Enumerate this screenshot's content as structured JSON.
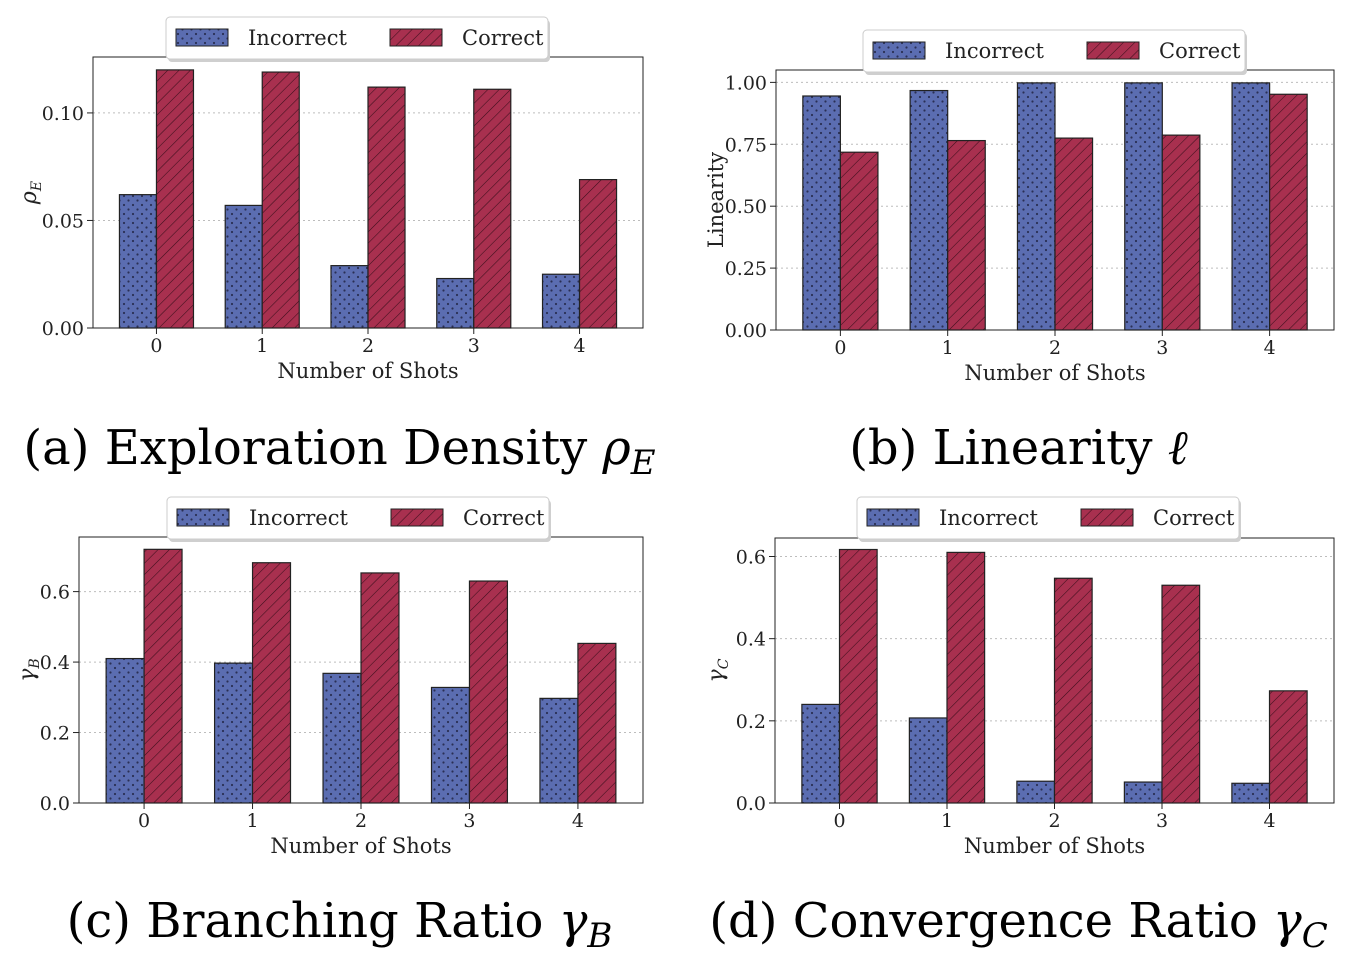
{
  "colors": {
    "incorrect": "#5b6db1",
    "correct": "#a8304f",
    "edge": "#222222"
  },
  "legend": {
    "incorrect": "Incorrect",
    "correct": "Correct"
  },
  "chart_data": [
    {
      "type": "bar",
      "id": "a",
      "caption_prefix": "(a) Exploration Density",
      "caption_symbol": "ρ",
      "caption_sub": "E",
      "ylabel_symbol": "ρ",
      "ylabel_sub": "E",
      "xlabel": "Number of Shots",
      "categories": [
        "0",
        "1",
        "2",
        "3",
        "4"
      ],
      "series": [
        {
          "name": "Incorrect",
          "values": [
            0.062,
            0.057,
            0.029,
            0.023,
            0.025
          ]
        },
        {
          "name": "Correct",
          "values": [
            0.12,
            0.119,
            0.112,
            0.111,
            0.069
          ]
        }
      ],
      "ylim": [
        0,
        0.126
      ],
      "yticks": [
        0.0,
        0.05,
        0.1
      ],
      "ytick_labels": [
        "0.00",
        "0.05",
        "0.10"
      ],
      "legend_position": "top-center",
      "grid": "y-dotted"
    },
    {
      "type": "bar",
      "id": "b",
      "caption_prefix": "(b) Linearity",
      "caption_symbol": "ℓ",
      "caption_sub": "",
      "ylabel_text": "Linearity",
      "xlabel": "Number of Shots",
      "categories": [
        "0",
        "1",
        "2",
        "3",
        "4"
      ],
      "series": [
        {
          "name": "Incorrect",
          "values": [
            0.945,
            0.967,
            0.998,
            0.998,
            0.998
          ]
        },
        {
          "name": "Correct",
          "values": [
            0.718,
            0.765,
            0.775,
            0.787,
            0.952
          ]
        }
      ],
      "ylim": [
        0,
        1.05
      ],
      "yticks": [
        0.0,
        0.25,
        0.5,
        0.75,
        1.0
      ],
      "ytick_labels": [
        "0.00",
        "0.25",
        "0.50",
        "0.75",
        "1.00"
      ],
      "legend_position": "top-center",
      "grid": "y-dotted"
    },
    {
      "type": "bar",
      "id": "c",
      "caption_prefix": "(c) Branching Ratio",
      "caption_symbol": "γ",
      "caption_sub": "B",
      "ylabel_symbol": "γ",
      "ylabel_sub": "B",
      "xlabel": "Number of Shots",
      "categories": [
        "0",
        "1",
        "2",
        "3",
        "4"
      ],
      "series": [
        {
          "name": "Incorrect",
          "values": [
            0.41,
            0.397,
            0.368,
            0.328,
            0.297
          ]
        },
        {
          "name": "Correct",
          "values": [
            0.72,
            0.682,
            0.653,
            0.63,
            0.453
          ]
        }
      ],
      "ylim": [
        0,
        0.755
      ],
      "yticks": [
        0.0,
        0.2,
        0.4,
        0.6
      ],
      "ytick_labels": [
        "0.0",
        "0.2",
        "0.4",
        "0.6"
      ],
      "legend_position": "top-center",
      "grid": "y-dotted"
    },
    {
      "type": "bar",
      "id": "d",
      "caption_prefix": "(d) Convergence Ratio",
      "caption_symbol": "γ",
      "caption_sub": "C",
      "ylabel_symbol": "γ",
      "ylabel_sub": "C",
      "xlabel": "Number of Shots",
      "categories": [
        "0",
        "1",
        "2",
        "3",
        "4"
      ],
      "series": [
        {
          "name": "Incorrect",
          "values": [
            0.24,
            0.207,
            0.053,
            0.051,
            0.048
          ]
        },
        {
          "name": "Correct",
          "values": [
            0.617,
            0.61,
            0.547,
            0.53,
            0.273
          ]
        }
      ],
      "ylim": [
        0,
        0.645
      ],
      "yticks": [
        0.0,
        0.2,
        0.4,
        0.6
      ],
      "ytick_labels": [
        "0.0",
        "0.2",
        "0.4",
        "0.6"
      ],
      "legend_position": "top-center",
      "grid": "y-dotted"
    }
  ]
}
